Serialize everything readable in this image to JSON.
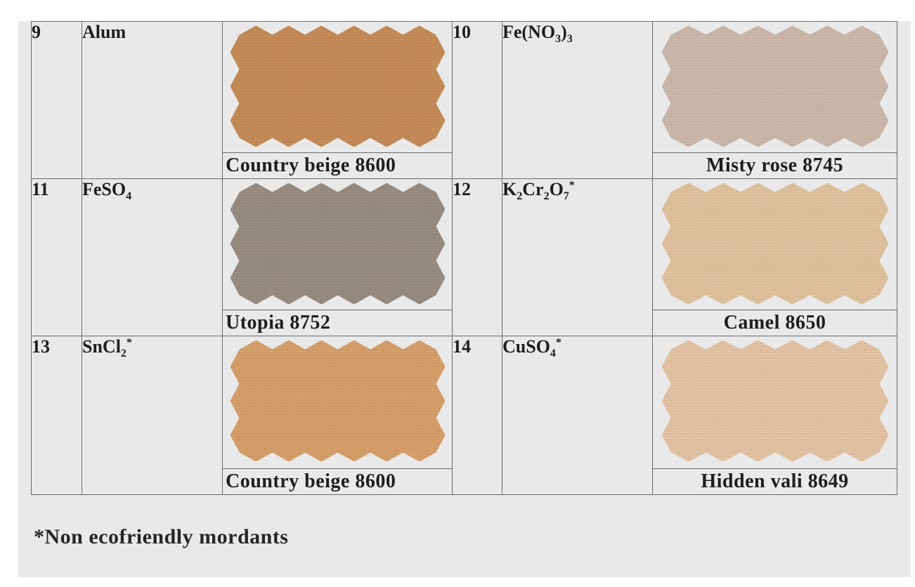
{
  "rows": [
    {
      "left": {
        "num": "9",
        "mordant": {
          "base": "Alum",
          "parts": []
        },
        "star": "",
        "shade": "Country beige 8600",
        "color": "#c38955"
      },
      "right": {
        "num": "10",
        "mordant": {
          "base": "Fe(NO",
          "parts": [
            {
              "t": "sub",
              "v": "3"
            },
            {
              "t": "txt",
              "v": ")"
            },
            {
              "t": "sub",
              "v": "3"
            }
          ]
        },
        "star": "",
        "shade": "Misty rose 8745",
        "color": "#c9b6a9"
      }
    },
    {
      "left": {
        "num": "11",
        "mordant": {
          "base": "FeSO",
          "parts": [
            {
              "t": "sub",
              "v": "4"
            }
          ]
        },
        "star": "",
        "shade": "Utopia 8752",
        "color": "#968a7f"
      },
      "right": {
        "num": "12",
        "mordant": {
          "base": "K",
          "parts": [
            {
              "t": "sub",
              "v": "2"
            },
            {
              "t": "txt",
              "v": "Cr"
            },
            {
              "t": "sub",
              "v": "2"
            },
            {
              "t": "txt",
              "v": "O"
            },
            {
              "t": "sub",
              "v": "7"
            }
          ]
        },
        "star": "*",
        "shade": "Camel 8650",
        "color": "#ddc09b"
      }
    },
    {
      "left": {
        "num": "13",
        "mordant": {
          "base": "SnCl",
          "parts": [
            {
              "t": "sub",
              "v": "2"
            }
          ]
        },
        "star": "*",
        "shade": "Country beige 8600",
        "color": "#d49d67"
      },
      "right": {
        "num": "14",
        "mordant": {
          "base": "CuSO",
          "parts": [
            {
              "t": "sub",
              "v": "4"
            }
          ]
        },
        "star": "*",
        "shade": "Hidden vali 8649",
        "color": "#e2c1a2"
      }
    }
  ],
  "footnote": "*Non ecofriendly mordants"
}
